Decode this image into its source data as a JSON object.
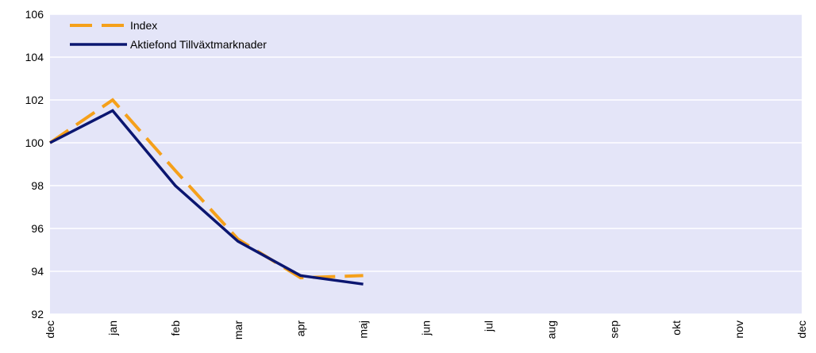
{
  "chart_data": {
    "type": "line",
    "categories": [
      "dec",
      "jan",
      "feb",
      "mar",
      "apr",
      "maj",
      "jun",
      "jul",
      "aug",
      "sep",
      "okt",
      "nov",
      "dec"
    ],
    "series": [
      {
        "name": "Index",
        "color": "#f5a01a",
        "dashed": true,
        "values": [
          100,
          102,
          98.7,
          95.5,
          93.7,
          93.8,
          null,
          null,
          null,
          null,
          null,
          null,
          null
        ]
      },
      {
        "name": "Aktiefond Tillväxtmarknader",
        "color": "#0b1670",
        "dashed": false,
        "values": [
          100,
          101.5,
          98.0,
          95.4,
          93.8,
          93.4,
          null,
          null,
          null,
          null,
          null,
          null,
          null
        ]
      }
    ],
    "ylim": [
      92,
      106
    ],
    "yticks": [
      92,
      94,
      96,
      98,
      100,
      102,
      104,
      106
    ],
    "grid": true,
    "legend": "top-left"
  }
}
